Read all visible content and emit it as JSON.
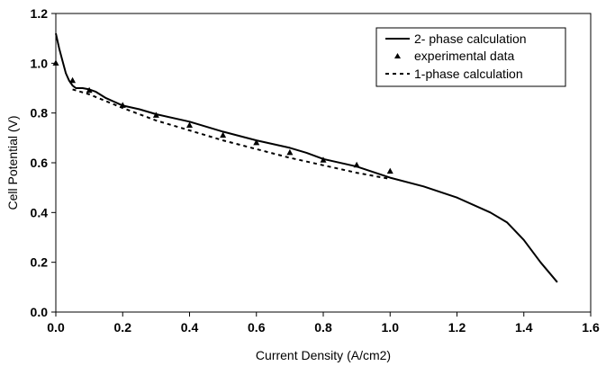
{
  "chart_data": {
    "type": "line",
    "title": "",
    "xlabel": "Current Density (A/cm2)",
    "ylabel": "Cell Potential (V)",
    "xlim": [
      0.0,
      1.6
    ],
    "ylim": [
      0.0,
      1.2
    ],
    "x_ticks": [
      "0.0",
      "0.2",
      "0.4",
      "0.6",
      "0.8",
      "1.0",
      "1.2",
      "1.4",
      "1.6"
    ],
    "y_ticks": [
      "0.0",
      "0.2",
      "0.4",
      "0.6",
      "0.8",
      "1.0",
      "1.2"
    ],
    "grid": false,
    "legend_position": "top-right",
    "series": [
      {
        "name": "2- phase calculation",
        "style": "solid-line",
        "color": "#000000",
        "x": [
          0.0,
          0.01,
          0.02,
          0.03,
          0.04,
          0.05,
          0.06,
          0.08,
          0.1,
          0.12,
          0.15,
          0.2,
          0.25,
          0.3,
          0.4,
          0.5,
          0.6,
          0.7,
          0.75,
          0.8,
          0.9,
          1.0,
          1.1,
          1.2,
          1.3,
          1.35,
          1.4,
          1.45,
          1.5
        ],
        "y": [
          1.12,
          1.06,
          1.01,
          0.96,
          0.93,
          0.91,
          0.9,
          0.9,
          0.895,
          0.885,
          0.86,
          0.83,
          0.815,
          0.795,
          0.765,
          0.725,
          0.69,
          0.66,
          0.64,
          0.615,
          0.585,
          0.54,
          0.505,
          0.46,
          0.4,
          0.36,
          0.29,
          0.2,
          0.12
        ]
      },
      {
        "name": "experimental data",
        "style": "triangle-markers",
        "color": "#000000",
        "x": [
          0.0,
          0.05,
          0.1,
          0.2,
          0.3,
          0.4,
          0.5,
          0.6,
          0.7,
          0.8,
          0.9,
          1.0
        ],
        "y": [
          1.0,
          0.93,
          0.89,
          0.83,
          0.79,
          0.75,
          0.71,
          0.68,
          0.64,
          0.61,
          0.59,
          0.565
        ]
      },
      {
        "name": "1-phase calculation",
        "style": "dashed-line",
        "color": "#000000",
        "x": [
          0.05,
          0.1,
          0.2,
          0.3,
          0.4,
          0.5,
          0.6,
          0.7,
          0.8,
          0.9,
          1.0
        ],
        "y": [
          0.895,
          0.875,
          0.82,
          0.77,
          0.73,
          0.69,
          0.655,
          0.62,
          0.59,
          0.56,
          0.535
        ]
      }
    ]
  }
}
